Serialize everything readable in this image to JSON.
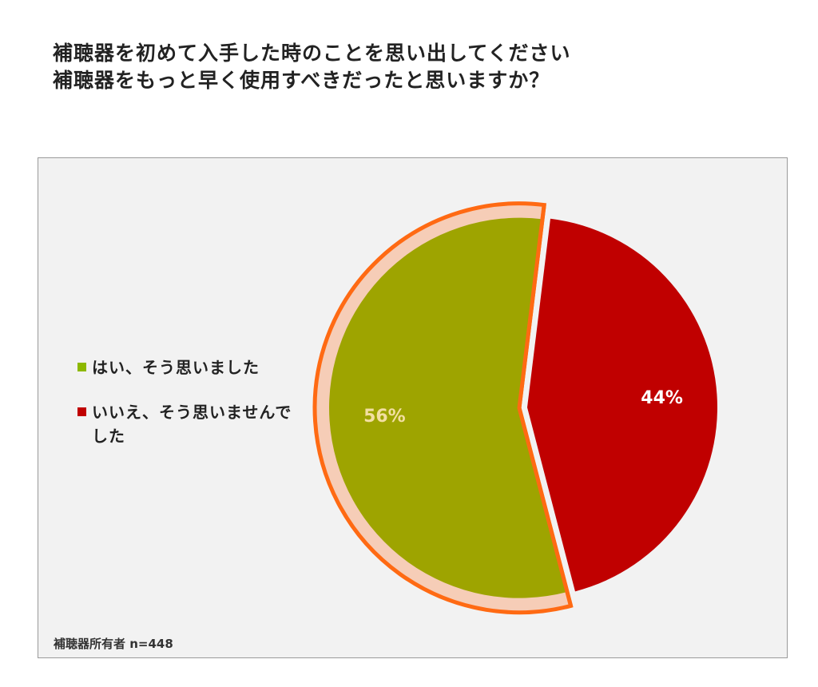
{
  "chart_data": {
    "type": "pie",
    "title_lines": [
      "補聴器を初めて入手した時のことを思い出してください",
      "補聴器をもっと早く使用すべきだったと思いますか？"
    ],
    "categories": [
      "はい、そう思いました",
      "いいえ、そう思いませんでした"
    ],
    "values": [
      56,
      44
    ],
    "data_labels": [
      "56%",
      "44%"
    ],
    "colors": [
      "#9ea400",
      "#c00000"
    ],
    "exploded_slice": 0,
    "highlight_color": "#ff6a13",
    "legend_position": "left",
    "note": "補聴器所有者",
    "sample_size": "n=448"
  }
}
